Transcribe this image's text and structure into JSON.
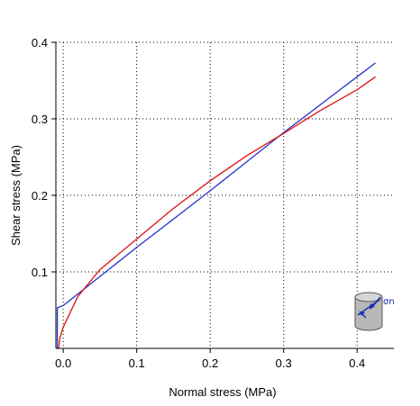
{
  "chart_data": {
    "type": "line",
    "xlabel": "Normal stress (MPa)",
    "ylabel": "Shear stress (MPa)",
    "xlim": [
      -0.01,
      0.45
    ],
    "ylim": [
      0,
      0.4
    ],
    "xticks": [
      0.0,
      0.1,
      0.2,
      0.3,
      0.4
    ],
    "xtick_labels": [
      "0.0",
      "0.1",
      "0.2",
      "0.3",
      "0.4"
    ],
    "yticks": [
      0.1,
      0.2,
      0.3,
      0.4
    ],
    "ytick_labels": [
      "0.1",
      "0.2",
      "0.3",
      "0.4"
    ],
    "grid": true,
    "series": [
      {
        "color": "#2233cc",
        "x": [
          -0.008,
          -0.008,
          0.0,
          0.1,
          0.2,
          0.3,
          0.4,
          0.425
        ],
        "y": [
          0.0,
          0.053,
          0.056,
          0.132,
          0.206,
          0.282,
          0.355,
          0.373
        ]
      },
      {
        "color": "#dd1111",
        "x": [
          -0.006,
          -0.005,
          0.0,
          0.02,
          0.05,
          0.1,
          0.15,
          0.2,
          0.25,
          0.3,
          0.35,
          0.4,
          0.425
        ],
        "y": [
          0.0,
          0.012,
          0.028,
          0.068,
          0.103,
          0.143,
          0.183,
          0.219,
          0.252,
          0.281,
          0.311,
          0.338,
          0.355
        ]
      }
    ],
    "icon": {
      "name": "cylinder-specimen-icon",
      "label": "σn",
      "body_color": "#b8b8b8",
      "arrow_color": "#1a2fb3"
    }
  }
}
